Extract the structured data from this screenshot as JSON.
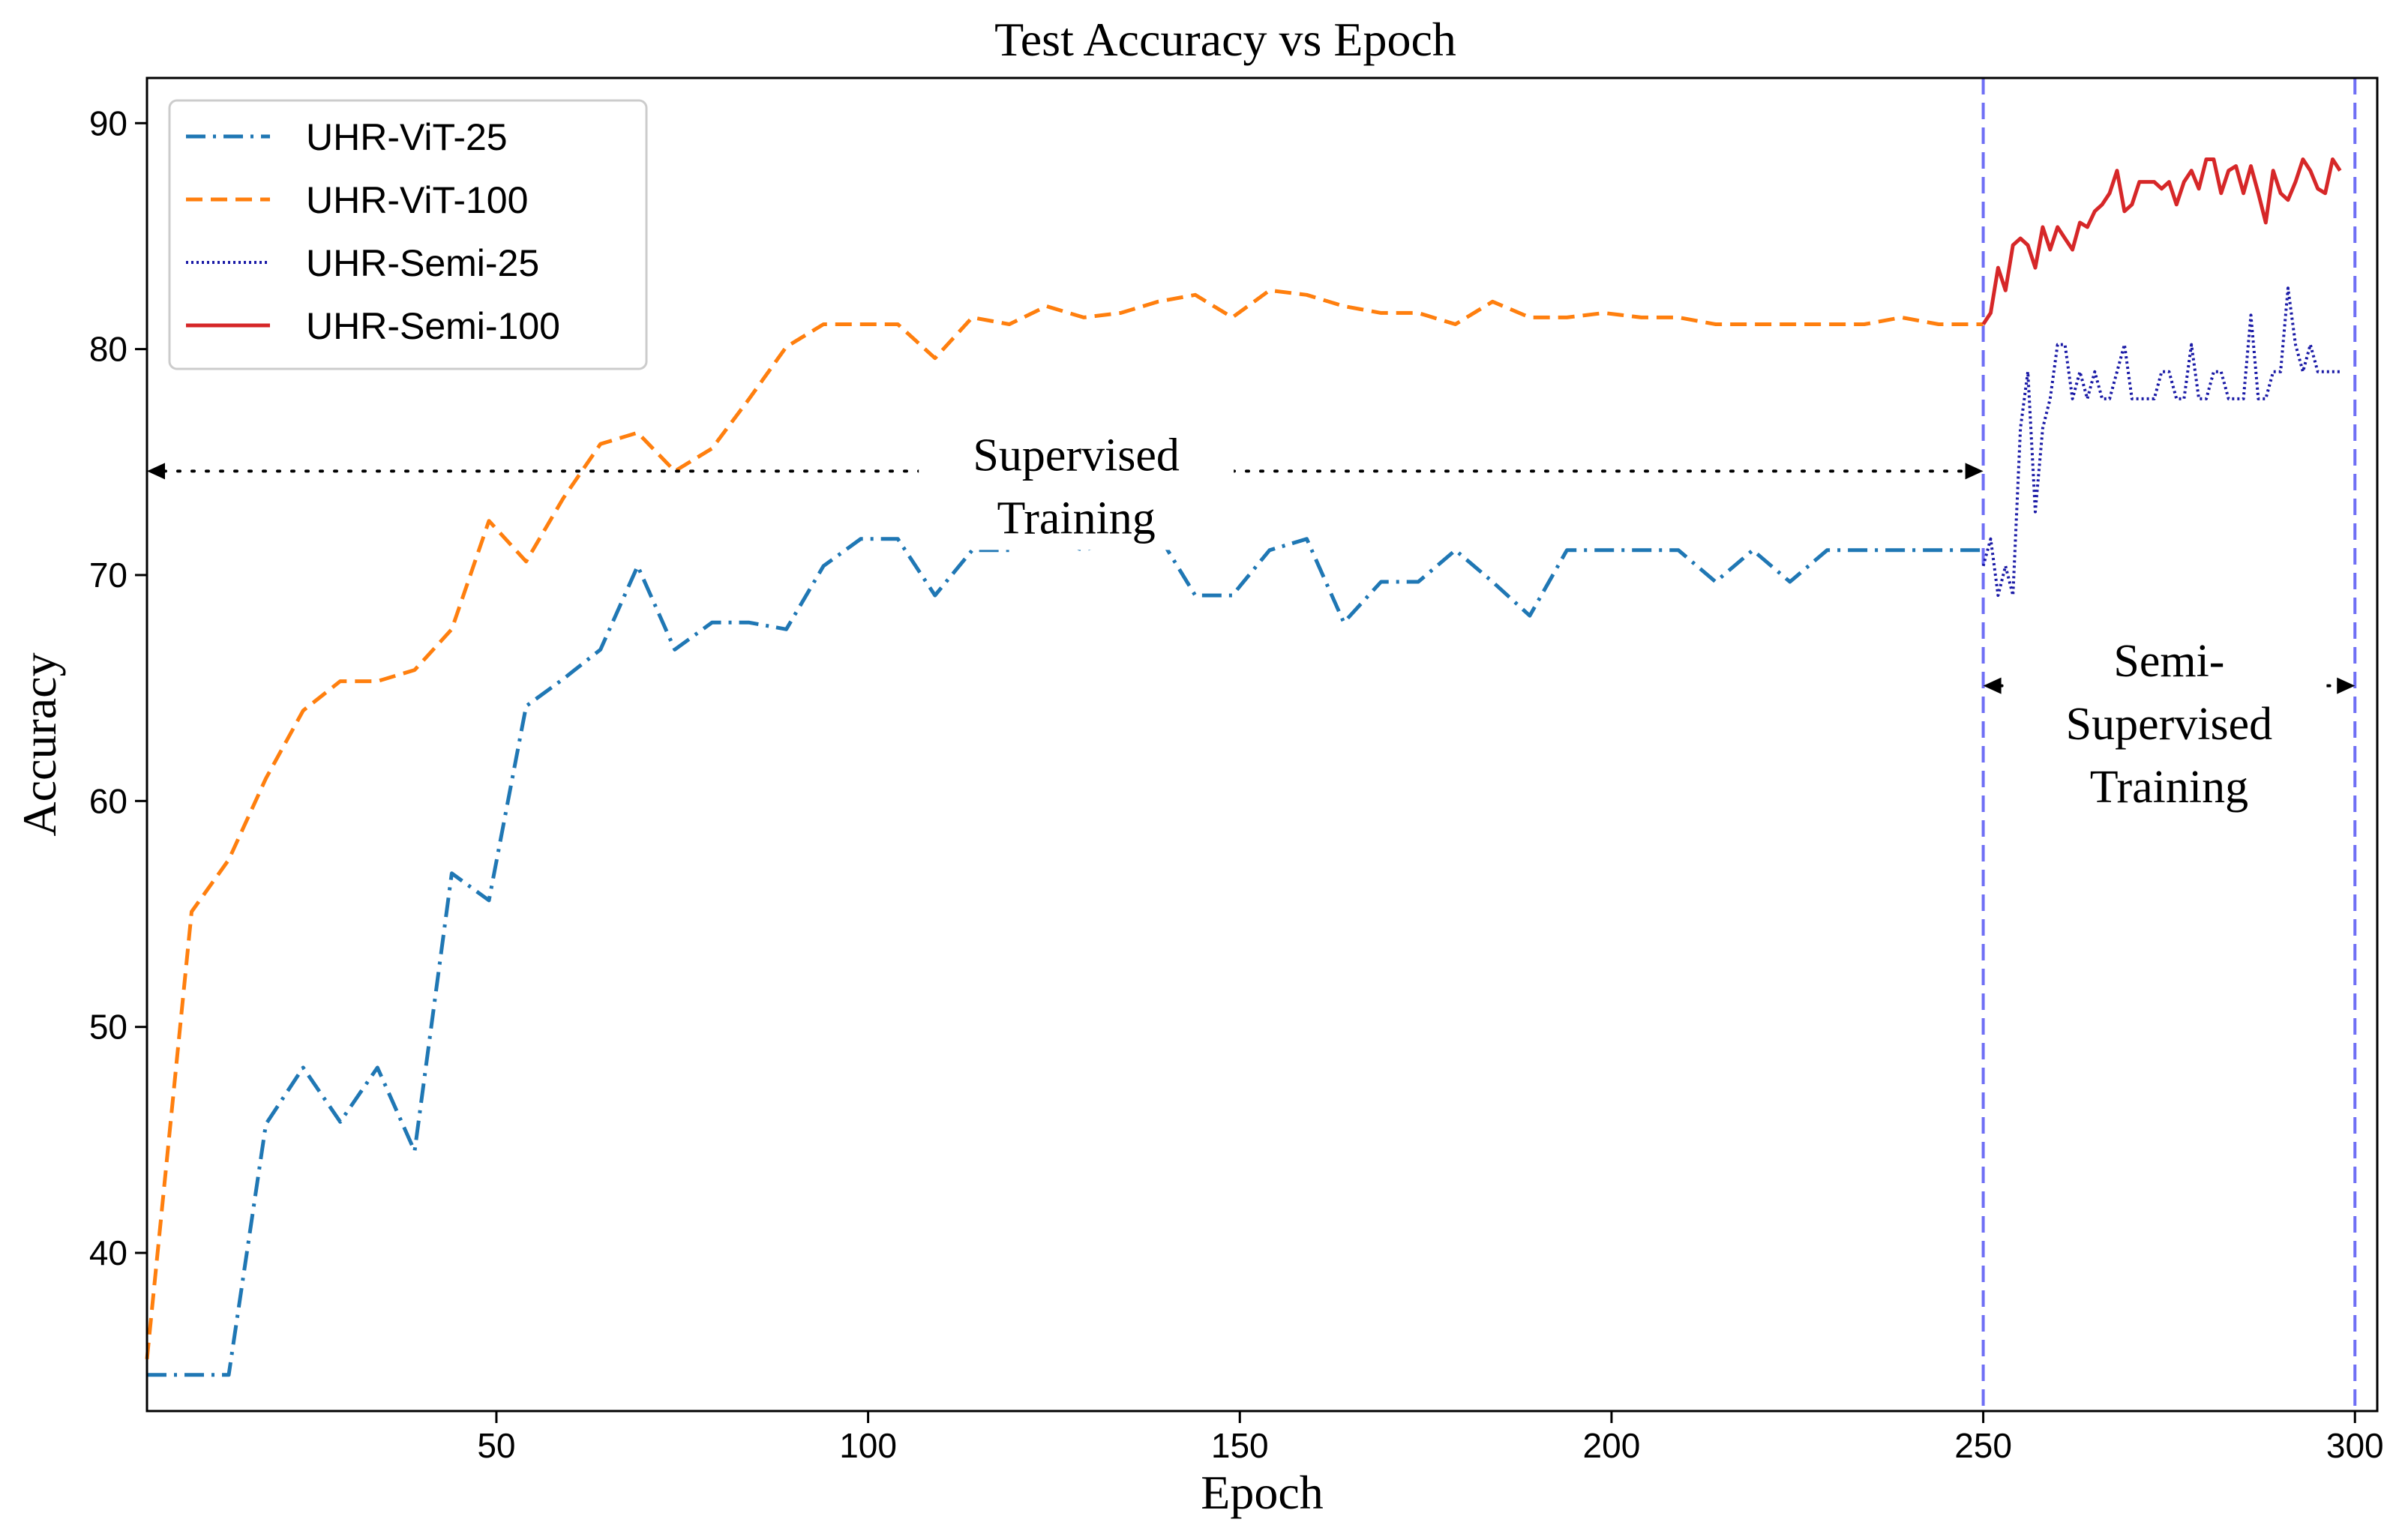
{
  "chart_data": {
    "type": "line",
    "title": "Test Accuracy vs Epoch",
    "xlabel": "Epoch",
    "ylabel": "Accuracy",
    "xlim": [
      3,
      303
    ],
    "ylim": [
      33,
      92
    ],
    "xticks": [
      50,
      100,
      150,
      200,
      250,
      300
    ],
    "yticks": [
      40,
      50,
      60,
      70,
      80,
      90
    ],
    "grid": false,
    "legend_position": "upper-left",
    "series": [
      {
        "name": "UHR-ViT-25",
        "color": "#1f77b4",
        "style": "dashdot",
        "x": [
          3,
          9,
          14,
          19,
          24,
          29,
          34,
          39,
          44,
          49,
          54,
          59,
          64,
          69,
          74,
          79,
          84,
          89,
          94,
          99,
          104,
          109,
          114,
          119,
          124,
          129,
          134,
          139,
          144,
          149,
          154,
          159,
          164,
          169,
          174,
          179,
          184,
          189,
          194,
          199,
          204,
          209,
          214,
          219,
          224,
          229,
          234,
          239,
          244,
          249,
          250
        ],
        "y": [
          34.6,
          34.6,
          34.6,
          45.7,
          48.2,
          45.8,
          48.2,
          44.5,
          56.8,
          55.6,
          64.2,
          65.4,
          66.7,
          70.4,
          66.7,
          67.9,
          67.9,
          67.6,
          70.4,
          71.6,
          71.6,
          69.1,
          71.1,
          71.1,
          71.6,
          71.1,
          71.6,
          71.8,
          69.1,
          69.1,
          71.1,
          71.6,
          67.9,
          69.7,
          69.7,
          71.1,
          69.7,
          68.2,
          71.1,
          71.1,
          71.1,
          71.1,
          69.7,
          71.1,
          69.7,
          71.1,
          71.1,
          71.1,
          71.1,
          71.1,
          71.1
        ]
      },
      {
        "name": "UHR-ViT-100",
        "color": "#ff7f0e",
        "style": "dashed",
        "x": [
          3,
          9,
          14,
          19,
          24,
          29,
          34,
          39,
          44,
          49,
          54,
          59,
          64,
          69,
          74,
          79,
          84,
          89,
          94,
          99,
          104,
          109,
          114,
          119,
          124,
          129,
          134,
          139,
          144,
          149,
          154,
          159,
          164,
          169,
          174,
          179,
          184,
          189,
          194,
          199,
          204,
          209,
          214,
          219,
          224,
          229,
          234,
          239,
          244,
          249,
          250
        ],
        "y": [
          35.3,
          55.1,
          57.4,
          61.0,
          64.0,
          65.3,
          65.3,
          65.8,
          67.6,
          72.4,
          70.6,
          73.4,
          75.8,
          76.3,
          74.6,
          75.6,
          77.8,
          80.1,
          81.1,
          81.1,
          81.1,
          79.6,
          81.4,
          81.1,
          81.9,
          81.4,
          81.6,
          82.1,
          82.4,
          81.4,
          82.6,
          82.4,
          81.9,
          81.6,
          81.6,
          81.1,
          82.1,
          81.4,
          81.4,
          81.6,
          81.4,
          81.4,
          81.1,
          81.1,
          81.1,
          81.1,
          81.1,
          81.4,
          81.1,
          81.1,
          81.1
        ]
      },
      {
        "name": "UHR-Semi-25",
        "color": "#1a1aa6",
        "style": "dotted",
        "x": [
          250,
          251,
          252,
          253,
          254,
          255,
          256,
          257,
          258,
          259,
          260,
          261,
          262,
          263,
          264,
          265,
          266,
          267,
          268,
          269,
          270,
          271,
          272,
          273,
          274,
          275,
          276,
          277,
          278,
          279,
          280,
          281,
          282,
          283,
          284,
          285,
          286,
          287,
          288,
          289,
          290,
          291,
          292,
          293,
          294,
          295,
          296,
          297,
          298
        ],
        "y": [
          70.4,
          71.6,
          69.1,
          70.4,
          69.1,
          76.5,
          79.0,
          72.8,
          76.5,
          77.8,
          80.2,
          80.2,
          77.8,
          79.0,
          77.8,
          79.0,
          77.8,
          77.8,
          79.0,
          80.2,
          77.8,
          77.8,
          77.8,
          77.8,
          79.0,
          79.0,
          77.8,
          77.8,
          80.2,
          77.8,
          77.8,
          79.0,
          79.0,
          77.8,
          77.8,
          77.8,
          81.5,
          77.8,
          77.8,
          79.0,
          79.0,
          82.7,
          80.2,
          79.0,
          80.2,
          79.0,
          79.0,
          79.0,
          79.0
        ]
      },
      {
        "name": "UHR-Semi-100",
        "color": "#d62728",
        "style": "solid",
        "x": [
          250,
          251,
          252,
          253,
          254,
          255,
          256,
          257,
          258,
          259,
          260,
          261,
          262,
          263,
          264,
          265,
          266,
          267,
          268,
          269,
          270,
          271,
          272,
          273,
          274,
          275,
          276,
          277,
          278,
          279,
          280,
          281,
          282,
          283,
          284,
          285,
          286,
          287,
          288,
          289,
          290,
          291,
          292,
          293,
          294,
          295,
          296,
          297,
          298
        ],
        "y": [
          81.1,
          81.6,
          83.6,
          82.6,
          84.6,
          84.9,
          84.6,
          83.6,
          85.4,
          84.4,
          85.4,
          84.9,
          84.4,
          85.6,
          85.4,
          86.1,
          86.4,
          86.9,
          87.9,
          86.1,
          86.4,
          87.4,
          87.4,
          87.4,
          87.1,
          87.4,
          86.4,
          87.4,
          87.9,
          87.1,
          88.4,
          88.4,
          86.9,
          87.9,
          88.1,
          86.9,
          88.1,
          86.9,
          85.6,
          87.9,
          86.9,
          86.6,
          87.4,
          88.4,
          87.9,
          87.1,
          86.9,
          88.4,
          87.9
        ]
      }
    ],
    "vlines": [
      {
        "x": 250,
        "color": "#6f6ff5",
        "style": "dashed"
      },
      {
        "x": 300,
        "color": "#6f6ff5",
        "style": "dashed"
      }
    ],
    "annotations": [
      {
        "lines": [
          "Supervised",
          "Training"
        ],
        "x": 128,
        "y": 73.9,
        "arrow": {
          "x1": 3,
          "x2": 250,
          "y": 74.6
        }
      },
      {
        "lines": [
          "Semi-",
          "Supervised",
          "Training"
        ],
        "x": 275,
        "y": 63.4,
        "arrow": {
          "x1": 250,
          "x2": 300,
          "y": 65.1
        }
      }
    ]
  }
}
